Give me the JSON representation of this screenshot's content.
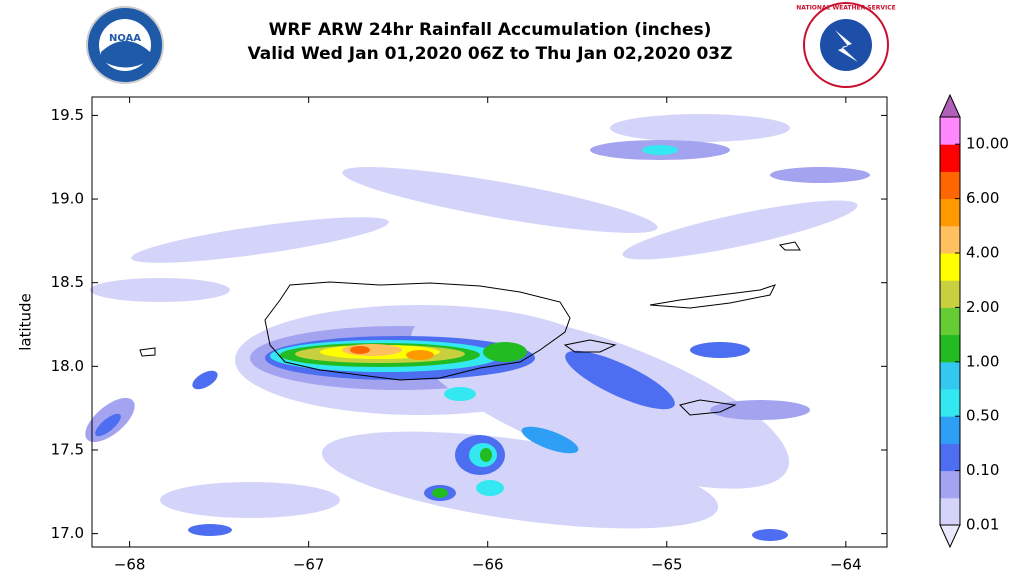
{
  "chart_data": {
    "type": "map",
    "title": "WRF ARW 24hr Rainfall Accumulation (inches)",
    "subtitle": "Valid Wed Jan 01,2020 06Z to Thu Jan 02,2020 03Z",
    "logos": {
      "left": "NOAA",
      "right": "NATIONAL WEATHER SERVICE"
    },
    "y_label": "latitude",
    "xlim": [
      -68.21,
      -63.77
    ],
    "ylim": [
      16.92,
      19.61
    ],
    "xticks": [
      {
        "value": -68,
        "label": "−68"
      },
      {
        "value": -67,
        "label": "−67"
      },
      {
        "value": -66,
        "label": "−66"
      },
      {
        "value": -65,
        "label": "−65"
      },
      {
        "value": -64,
        "label": "−64"
      }
    ],
    "yticks": [
      {
        "value": 17.0,
        "label": "17.0"
      },
      17.5,
      {
        "value": 18.0,
        "label": "18.0"
      },
      18.5,
      {
        "value": 19.0,
        "label": "19.0"
      },
      19.5
    ],
    "colorbar": {
      "ticks": [
        0.01,
        {
          "value": 0.1,
          "label": "0.10"
        },
        {
          "value": 0.5,
          "label": "0.50"
        },
        {
          "value": 1,
          "label": "1.00"
        },
        {
          "value": 2,
          "label": "2.00"
        },
        {
          "value": 4,
          "label": "4.00"
        },
        {
          "value": 6,
          "label": "6.00"
        },
        {
          "value": 10,
          "label": "10.00"
        }
      ],
      "under_color": "#e8e8ff",
      "colors": [
        "#d4d4fa",
        "#a3a3f0",
        "#4d6ef0",
        "#2f9ef5",
        "#33e8f0",
        "#33c8f0",
        "#22bb22",
        "#66cc33",
        "#c8d040",
        "#ffff00",
        "#ffc060",
        "#ff9900",
        "#ff6600",
        "#ff0000",
        "#ff88ff"
      ],
      "over_color": "#b060b8"
    }
  }
}
